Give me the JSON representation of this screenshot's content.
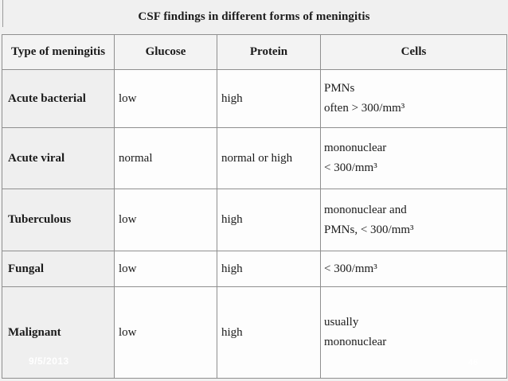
{
  "title": "CSF findings in different forms of meningitis",
  "table": {
    "headers": [
      "Type of meningitis",
      "Glucose",
      "Protein",
      "Cells"
    ],
    "rows": [
      {
        "type": "Acute bacterial",
        "glucose": "low",
        "protein": "high",
        "cells_line1": "PMNs",
        "cells_line2": "often > 300/mm³"
      },
      {
        "type": "Acute viral",
        "glucose": "normal",
        "protein": "normal or high",
        "cells_line1": "mononuclear",
        "cells_line2": "< 300/mm³"
      },
      {
        "type": "Tuberculous",
        "glucose": "low",
        "protein": "high",
        "cells_line1": "mononuclear and",
        "cells_line2": "PMNs, < 300/mm³"
      },
      {
        "type": "Fungal",
        "glucose": "low",
        "protein": "high",
        "cells_line1": "< 300/mm³",
        "cells_line2": ""
      },
      {
        "type": "Malignant",
        "glucose": "low",
        "protein": "high",
        "cells_line1": "usually",
        "cells_line2": "mononuclear"
      }
    ]
  },
  "footer": {
    "date": "9/5/2013",
    "page_number": "46"
  },
  "colors": {
    "page_background": "#f0f0f0",
    "header_cell_background": "#f3f3f3",
    "type_column_background": "#efefef",
    "data_cell_background": "#fdfdfd",
    "border": "#8f8f8f",
    "text": "#1b1b1b",
    "footer_text": "#ffffff"
  }
}
